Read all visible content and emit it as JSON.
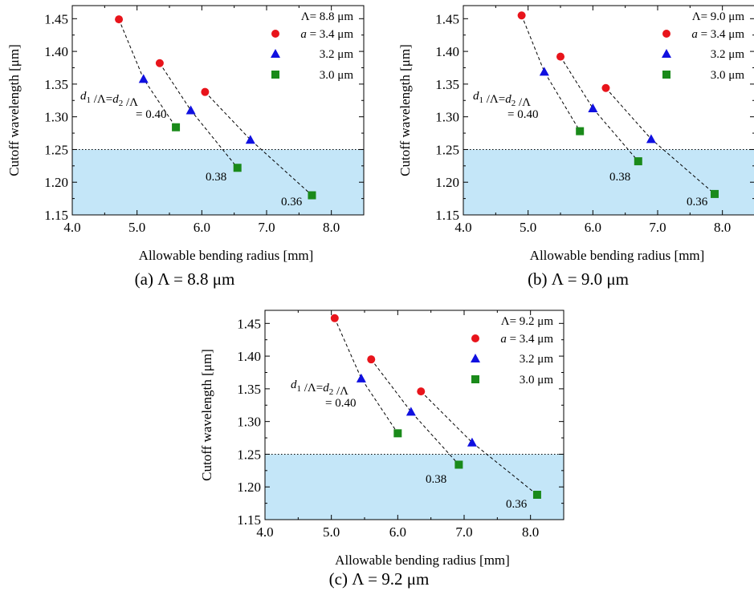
{
  "figure": {
    "ylabel": "Cutoff wavelength [μm]",
    "xlabel": "Allowable bending radius [mm]",
    "threshold": 1.25,
    "shade_color": "#c4e6f8",
    "colors": {
      "a34": "#e8141b",
      "a32": "#1010e0",
      "a30": "#1a8a1a"
    }
  },
  "legend_labels": {
    "a34": "= 3.4 μm",
    "a34_symbol": "a",
    "a32": "3.2 μm",
    "a30": "3.0 μm"
  },
  "annotations": {
    "d_ratio": "/Λ= /Λ",
    "d1": "d",
    "d1_sub": "1",
    "d2": "d",
    "d2_sub": "2",
    "v040": "= 0.40",
    "v038": "0.38",
    "v036": "0.36"
  },
  "chart_data": [
    {
      "type": "scatter",
      "caption": "(a) Λ = 8.8 μm",
      "legend_title": "Λ= 8.8 μm",
      "xlim": [
        4.0,
        8.5
      ],
      "ylim": [
        1.15,
        1.47
      ],
      "xticks": [
        "4.0",
        "5.0",
        "6.0",
        "7.0",
        "8.0"
      ],
      "yticks": [
        "1.15",
        "1.20",
        "1.25",
        "1.30",
        "1.35",
        "1.40",
        "1.45"
      ],
      "series": [
        {
          "name": "a = 3.4 μm",
          "marker": "circle",
          "x": [
            4.72,
            5.35,
            6.05
          ],
          "y": [
            1.449,
            1.382,
            1.338
          ]
        },
        {
          "name": "3.2 μm",
          "marker": "triangle",
          "x": [
            5.1,
            5.83,
            6.75
          ],
          "y": [
            1.358,
            1.31,
            1.265
          ]
        },
        {
          "name": "3.0 μm",
          "marker": "square",
          "x": [
            5.6,
            6.55,
            7.7
          ],
          "y": [
            1.284,
            1.222,
            1.18
          ]
        }
      ]
    },
    {
      "type": "scatter",
      "caption": "(b) Λ = 9.0 μm",
      "legend_title": "Λ= 9.0 μm",
      "xlim": [
        4.0,
        8.5
      ],
      "ylim": [
        1.15,
        1.47
      ],
      "xticks": [
        "4.0",
        "5.0",
        "6.0",
        "7.0",
        "8.0"
      ],
      "yticks": [
        "1.15",
        "1.20",
        "1.25",
        "1.30",
        "1.35",
        "1.40",
        "1.45"
      ],
      "series": [
        {
          "name": "a = 3.4 μm",
          "marker": "circle",
          "x": [
            4.9,
            5.5,
            6.2
          ],
          "y": [
            1.455,
            1.392,
            1.344
          ]
        },
        {
          "name": "3.2 μm",
          "marker": "triangle",
          "x": [
            5.25,
            6.0,
            6.9
          ],
          "y": [
            1.369,
            1.313,
            1.266
          ]
        },
        {
          "name": "3.0 μm",
          "marker": "square",
          "x": [
            5.8,
            6.7,
            7.88
          ],
          "y": [
            1.278,
            1.232,
            1.182
          ]
        }
      ]
    },
    {
      "type": "scatter",
      "caption": "(c) Λ = 9.2 μm",
      "legend_title": "Λ= 9.2 μm",
      "xlim": [
        4.0,
        8.5
      ],
      "ylim": [
        1.15,
        1.47
      ],
      "xticks": [
        "4.0",
        "5.0",
        "6.0",
        "7.0",
        "8.0"
      ],
      "yticks": [
        "1.15",
        "1.20",
        "1.25",
        "1.30",
        "1.35",
        "1.40",
        "1.45"
      ],
      "series": [
        {
          "name": "a = 3.4 μm",
          "marker": "circle",
          "x": [
            5.05,
            5.6,
            6.35
          ],
          "y": [
            1.458,
            1.395,
            1.346
          ]
        },
        {
          "name": "3.2 μm",
          "marker": "triangle",
          "x": [
            5.45,
            6.2,
            7.12
          ],
          "y": [
            1.366,
            1.315,
            1.268
          ]
        },
        {
          "name": "3.0 μm",
          "marker": "square",
          "x": [
            6.0,
            6.92,
            8.1
          ],
          "y": [
            1.282,
            1.234,
            1.188
          ]
        }
      ]
    }
  ]
}
